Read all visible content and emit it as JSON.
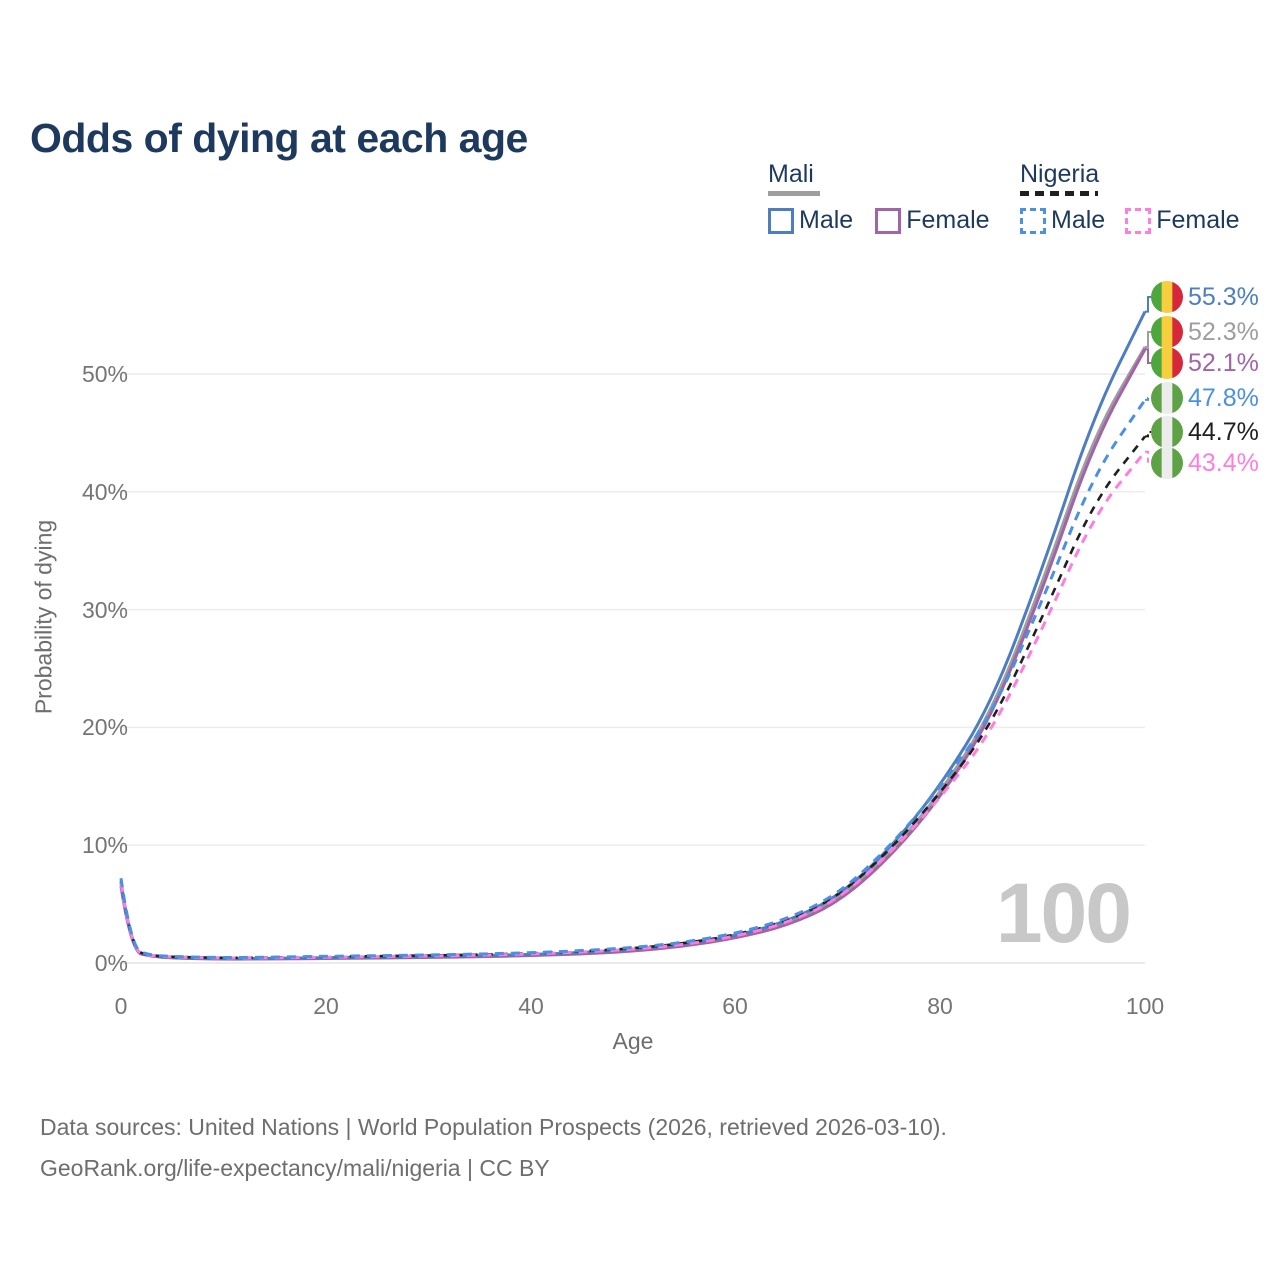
{
  "title": "Odds of dying at each age",
  "legend": {
    "groups": [
      {
        "label": "Mali",
        "underline_style": "solid",
        "underline_color": "#9a9a9a",
        "items": [
          {
            "label": "Male",
            "series_index": 0
          },
          {
            "label": "Female",
            "series_index": 2
          }
        ]
      },
      {
        "label": "Nigeria",
        "underline_style": "dashed",
        "underline_color": "#151515",
        "items": [
          {
            "label": "Male",
            "series_index": 3
          },
          {
            "label": "Female",
            "series_index": 5
          }
        ]
      }
    ]
  },
  "chart_data": {
    "type": "line",
    "title": "Odds of dying at each age",
    "xlabel": "Age",
    "ylabel": "Probability of dying",
    "x_ticks": [
      0,
      20,
      40,
      60,
      80,
      100
    ],
    "y_ticks": [
      "0%",
      "10%",
      "20%",
      "30%",
      "40%",
      "50%"
    ],
    "xlim": [
      0,
      100
    ],
    "ylim_pct": [
      0,
      57
    ],
    "grid": true,
    "legend_position": "top-right",
    "watermark": "100",
    "x": [
      0,
      1,
      3,
      5,
      10,
      15,
      20,
      25,
      30,
      35,
      40,
      45,
      50,
      55,
      60,
      65,
      70,
      75,
      80,
      85,
      90,
      95,
      100
    ],
    "series": [
      {
        "name": "Mali Male",
        "country": "Mali",
        "sex": "Male",
        "color": "#4d7ebf",
        "line_style": "solid",
        "flag": "mali",
        "end_label": "55.3%",
        "values": [
          6.9,
          1.05,
          0.6,
          0.45,
          0.35,
          0.4,
          0.45,
          0.5,
          0.55,
          0.62,
          0.72,
          0.88,
          1.15,
          1.6,
          2.3,
          3.5,
          5.6,
          9.6,
          15.0,
          22.0,
          33.5,
          46.5,
          55.3
        ]
      },
      {
        "name": "Mali Both sexes",
        "country": "Mali",
        "sex": "Both",
        "color": "#9e9e9e",
        "line_style": "solid",
        "flag": "mali",
        "end_label": "52.3%",
        "values": [
          6.7,
          1.0,
          0.57,
          0.43,
          0.33,
          0.37,
          0.42,
          0.46,
          0.51,
          0.57,
          0.67,
          0.82,
          1.08,
          1.5,
          2.2,
          3.3,
          5.3,
          9.2,
          14.4,
          21.2,
          32.3,
          44.8,
          52.3
        ]
      },
      {
        "name": "Mali Female",
        "country": "Mali",
        "sex": "Female",
        "color": "#a263a8",
        "line_style": "solid",
        "flag": "mali",
        "end_label": "52.1%",
        "values": [
          6.5,
          0.95,
          0.55,
          0.42,
          0.32,
          0.35,
          0.38,
          0.42,
          0.47,
          0.53,
          0.62,
          0.77,
          1.0,
          1.42,
          2.1,
          3.15,
          5.1,
          8.9,
          14.0,
          20.8,
          31.7,
          44.2,
          52.1
        ]
      },
      {
        "name": "Nigeria Male",
        "country": "Nigeria",
        "sex": "Male",
        "color": "#4b90e2",
        "line_style": "dashed",
        "flag": "nigeria",
        "end_label": "47.8%",
        "values": [
          7.2,
          1.15,
          0.65,
          0.55,
          0.45,
          0.5,
          0.57,
          0.62,
          0.68,
          0.76,
          0.87,
          1.05,
          1.3,
          1.75,
          2.5,
          3.7,
          5.8,
          9.8,
          14.9,
          21.0,
          30.8,
          41.5,
          47.8
        ]
      },
      {
        "name": "Nigeria Both sexes",
        "country": "Nigeria",
        "sex": "Both",
        "color": "#1f1f1f",
        "line_style": "dashed",
        "flag": "nigeria",
        "end_label": "44.7%",
        "values": [
          7.0,
          1.1,
          0.62,
          0.52,
          0.43,
          0.47,
          0.53,
          0.58,
          0.64,
          0.71,
          0.82,
          0.99,
          1.24,
          1.66,
          2.38,
          3.55,
          5.6,
          9.5,
          14.4,
          20.2,
          29.4,
          39.2,
          44.7
        ]
      },
      {
        "name": "Nigeria Female",
        "country": "Nigeria",
        "sex": "Female",
        "color": "#ff7ddd",
        "line_style": "dashed",
        "flag": "nigeria",
        "end_label": "43.4%",
        "values": [
          6.8,
          1.05,
          0.6,
          0.5,
          0.41,
          0.44,
          0.49,
          0.54,
          0.59,
          0.66,
          0.76,
          0.93,
          1.16,
          1.56,
          2.25,
          3.38,
          5.35,
          9.2,
          14.0,
          19.6,
          28.4,
          38.0,
          43.4
        ]
      }
    ]
  },
  "flags": {
    "mali": [
      "#4ea63f",
      "#f7ce3e",
      "#d6283a"
    ],
    "nigeria": [
      "#5da345",
      "#ececec",
      "#5da345"
    ]
  },
  "footer": {
    "line1": "Data sources: United Nations | World Population Prospects (2026, retrieved 2026-03-10).",
    "line2": "GeoRank.org/life-expectancy/mali/nigeria | CC BY"
  }
}
